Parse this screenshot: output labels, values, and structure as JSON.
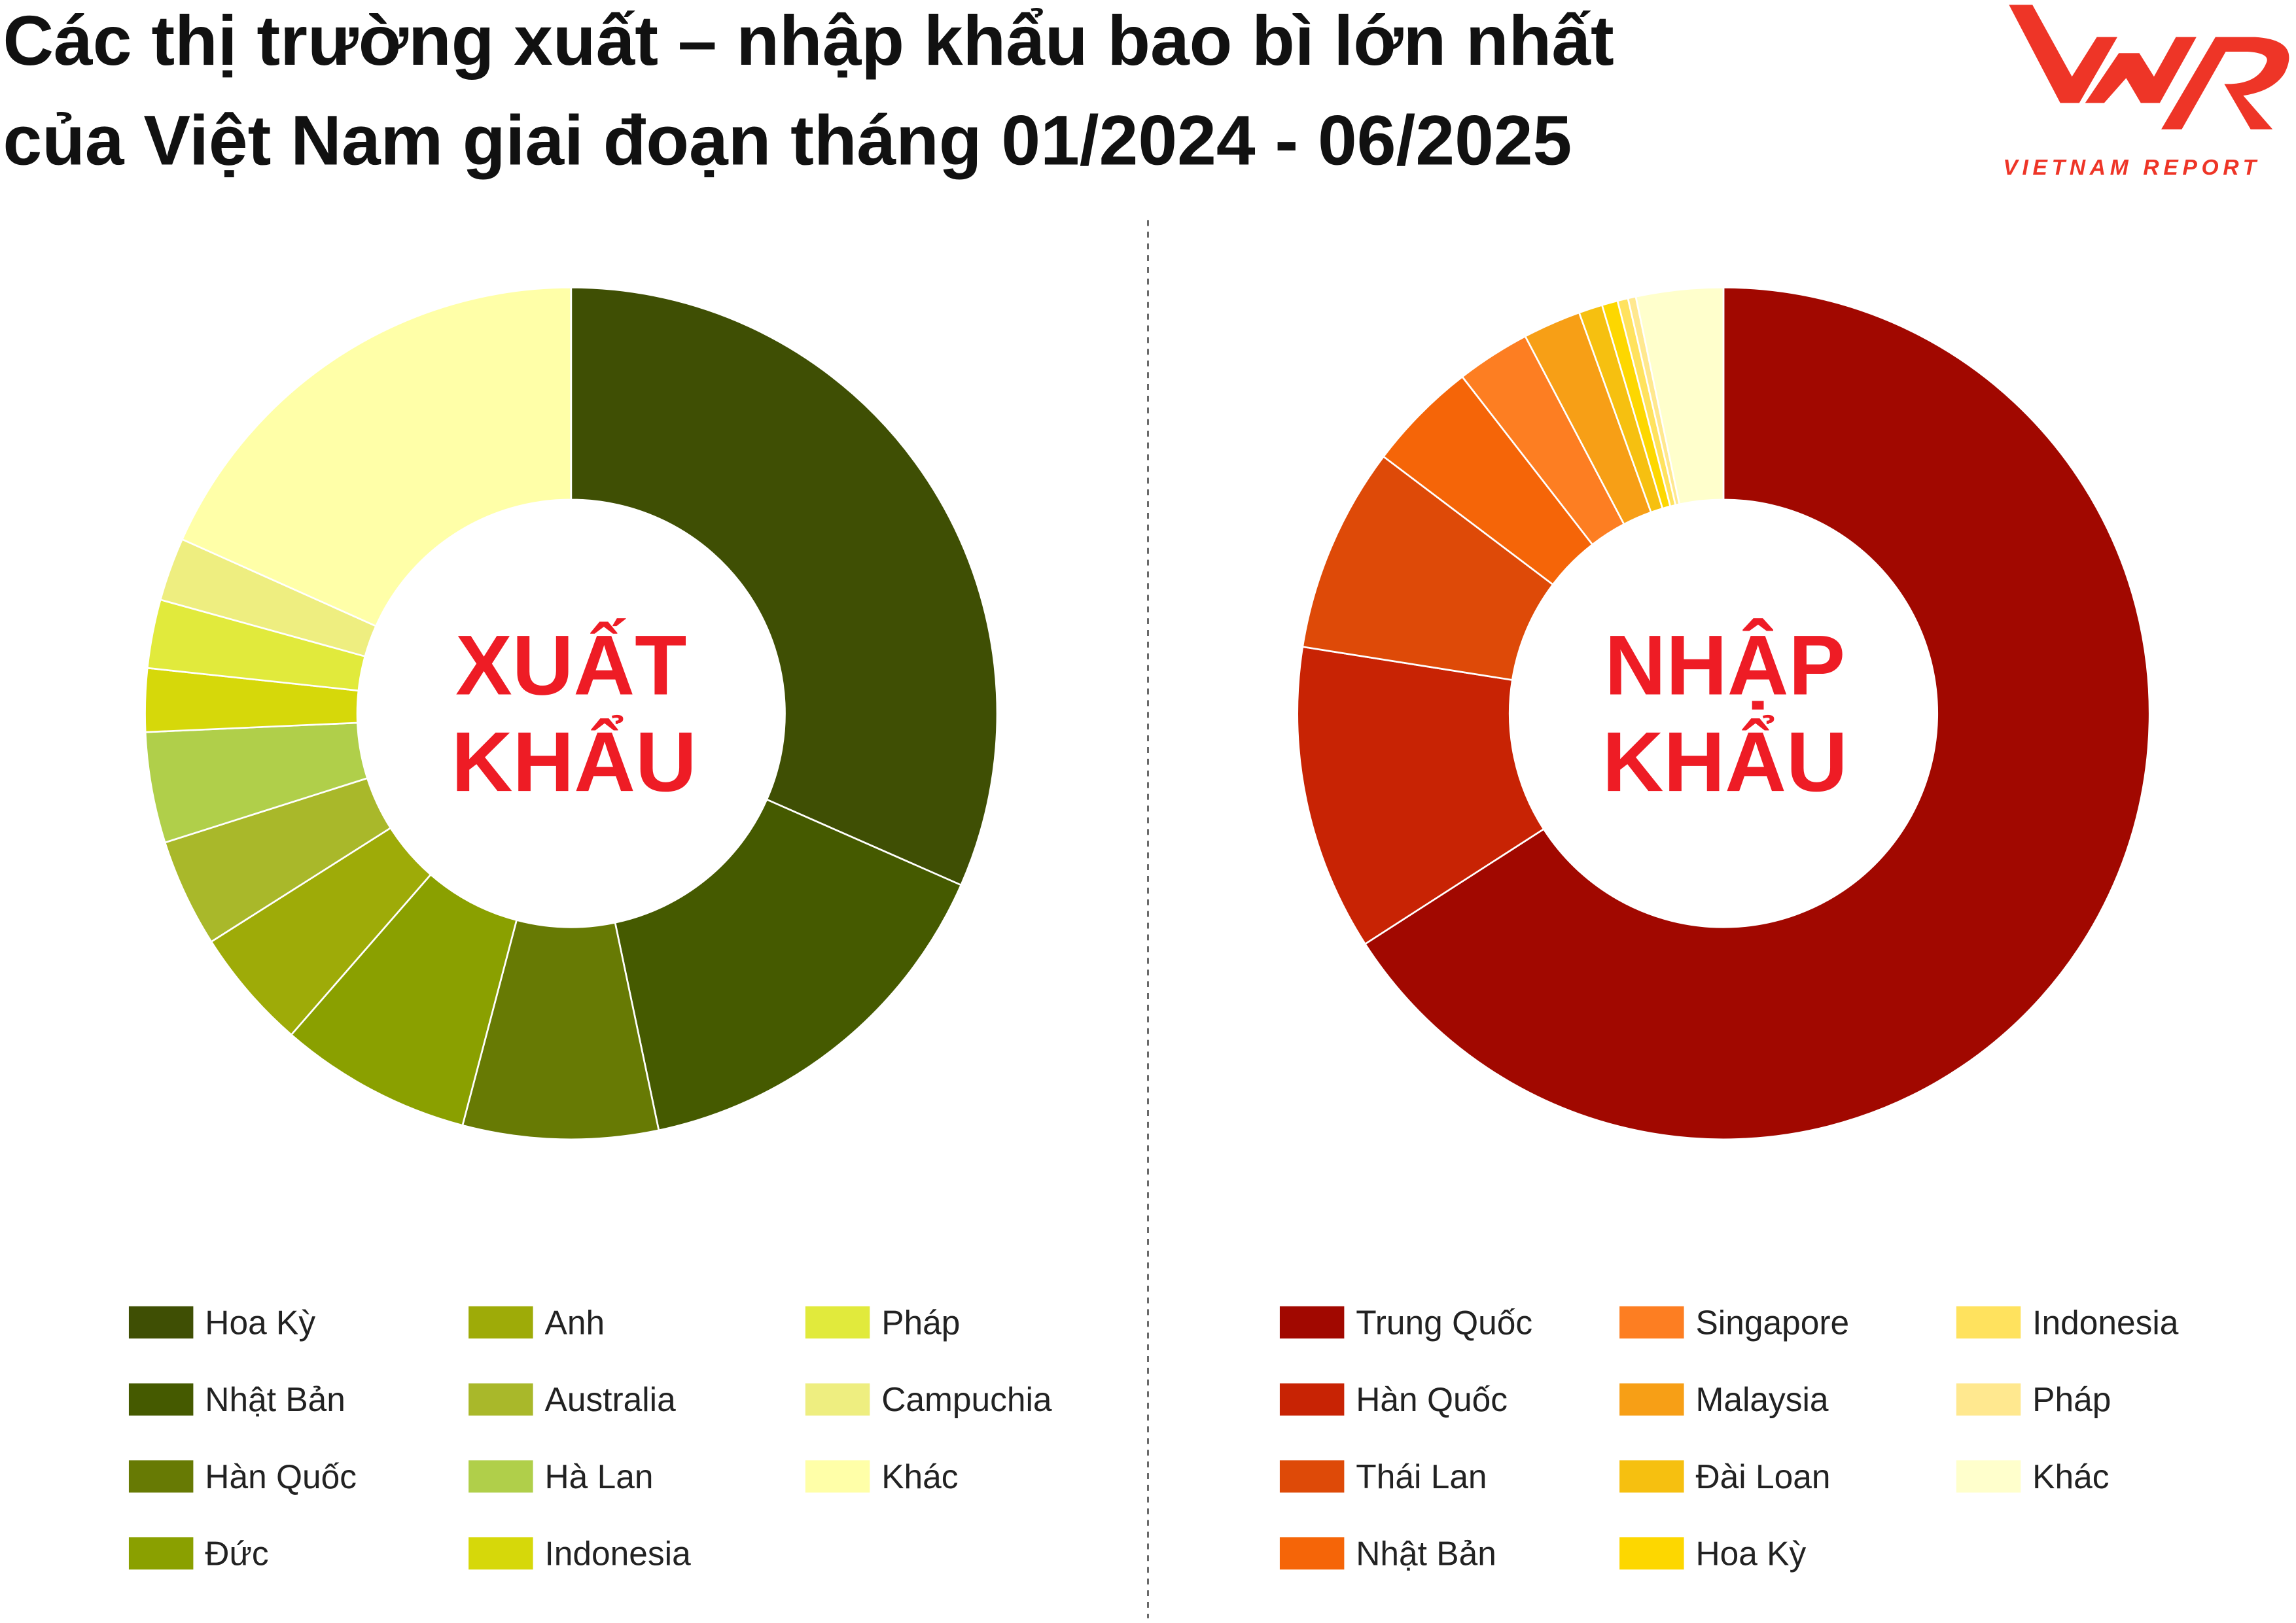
{
  "title": {
    "line1": "Các thị trường xuất – nhập khẩu bao bì lớn nhất",
    "line2": "của Việt Nam giai đoạn tháng 01/2024 - 06/2025"
  },
  "logo": {
    "text": "VNR",
    "subtitle": "VIETNAM REPORT",
    "color": "#ee3527"
  },
  "chart_data": [
    {
      "type": "pie",
      "donut": true,
      "center_label": [
        "XUẤT",
        "KHẨU"
      ],
      "unit": "%",
      "categories": [
        "Hoa Kỳ",
        "Nhật Bản",
        "Hàn Quốc",
        "Đức",
        "Anh",
        "Australia",
        "Hà Lan",
        "Indonesia",
        "Pháp",
        "Campuchia",
        "Khác"
      ],
      "values": [
        31.6,
        15.1,
        7.4,
        7.3,
        4.6,
        4.1,
        4.2,
        2.4,
        2.6,
        2.4,
        18.3
      ],
      "colors": [
        "#3f4f04",
        "#455a00",
        "#677a04",
        "#8aa000",
        "#9eab08",
        "#a9b82a",
        "#b0cf4a",
        "#d6d80a",
        "#e1ea3c",
        "#eeee80",
        "#ffffa8"
      ],
      "legend_placement": "bottom"
    },
    {
      "type": "pie",
      "donut": true,
      "center_label": [
        "NHẬP",
        "KHẨU"
      ],
      "unit": "%",
      "categories": [
        "Trung Quốc",
        "Hàn Quốc",
        "Thái Lan",
        "Nhật Bản",
        "Singapore",
        "Malaysia",
        "Đài Loan",
        "Hoa Kỳ",
        "Indonesia",
        "Pháp",
        "Khác"
      ],
      "values": [
        65.9,
        11.6,
        7.8,
        4.2,
        2.8,
        2.2,
        0.9,
        0.6,
        0.4,
        0.3,
        3.3
      ],
      "colors": [
        "#a10800",
        "#c82304",
        "#de4a08",
        "#f56508",
        "#fd7e22",
        "#f79f16",
        "#f6c010",
        "#fdd700",
        "#ffe25e",
        "#ffe88f",
        "#ffffcc"
      ],
      "legend_placement": "bottom"
    }
  ]
}
